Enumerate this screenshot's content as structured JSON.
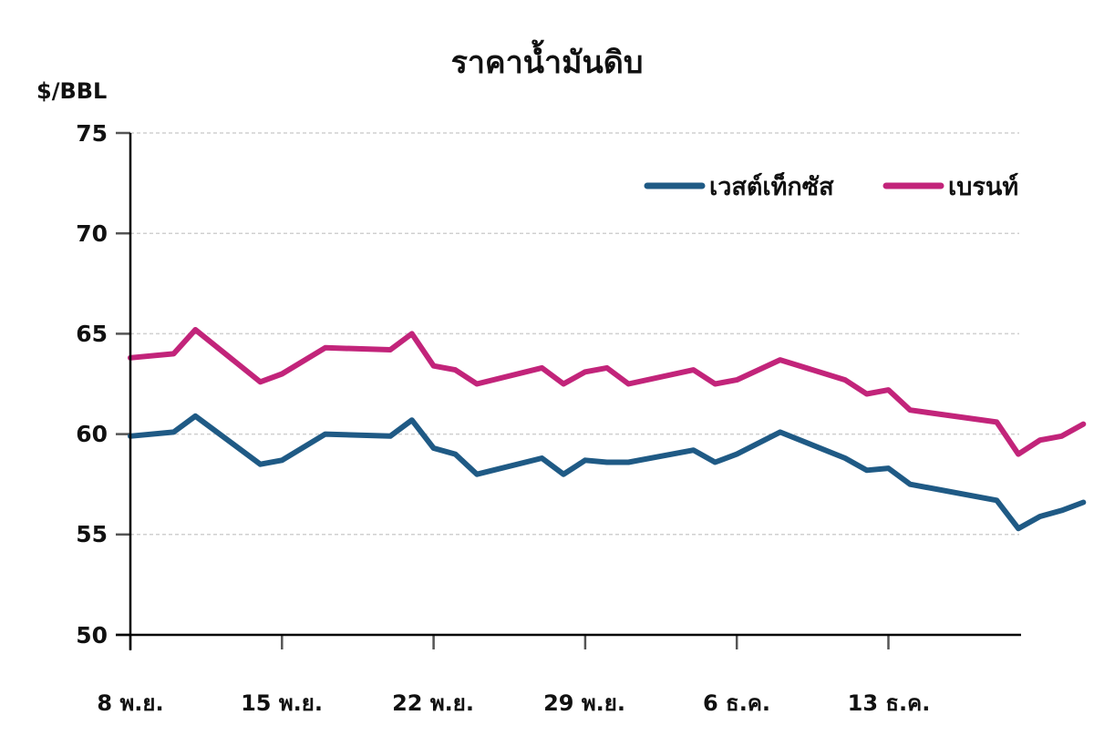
{
  "chart_data": {
    "type": "line",
    "title": "ราคาน้ำมันดิบ",
    "xlabel": "",
    "ylabel": "$/BBL",
    "ylim": [
      50,
      75
    ],
    "yticks": [
      50,
      55,
      60,
      65,
      70,
      75
    ],
    "grid": true,
    "legend_position": "top-right",
    "x_tick_labels": [
      "8 พ.ย.",
      "15 พ.ย.",
      "22 พ.ย.",
      "29 พ.ย.",
      "6 ธ.ค.",
      "13 ธ.ค."
    ],
    "x_day_offsets": [
      0,
      2,
      3,
      6,
      7,
      9,
      12,
      13,
      14,
      15,
      16,
      19,
      20,
      21,
      22,
      23,
      26,
      27,
      28,
      30,
      33,
      34,
      35,
      36,
      40,
      41,
      42,
      43,
      44
    ],
    "series": [
      {
        "name": "เวสต์เท็กซัส",
        "color": "#1F5A85",
        "values": [
          59.9,
          60.1,
          60.9,
          58.5,
          58.7,
          60.0,
          59.9,
          60.7,
          59.3,
          59.0,
          58.0,
          58.8,
          58.0,
          58.7,
          58.6,
          58.6,
          59.2,
          58.6,
          59.0,
          60.1,
          58.8,
          58.2,
          58.3,
          57.5,
          56.7,
          55.3,
          55.9,
          56.2,
          56.6
        ]
      },
      {
        "name": "เบรนท์",
        "color": "#C2247A",
        "values": [
          63.8,
          64.0,
          65.2,
          62.6,
          63.0,
          64.3,
          64.2,
          65.0,
          63.4,
          63.2,
          62.5,
          63.3,
          62.5,
          63.1,
          63.3,
          62.5,
          63.2,
          62.5,
          62.7,
          63.7,
          62.7,
          62.0,
          62.2,
          61.2,
          60.6,
          59.0,
          59.7,
          59.9,
          60.5
        ]
      }
    ]
  },
  "header": {
    "title": "ราคาน้ำมันดิบ",
    "unit_label": "$/BBL"
  },
  "legend": {
    "items": [
      {
        "label": "เวสต์เท็กซัส",
        "color": "#1F5A85"
      },
      {
        "label": "เบรนท์",
        "color": "#C2247A"
      }
    ]
  },
  "axis": {
    "y_labels": [
      "75",
      "70",
      "65",
      "60",
      "55",
      "50"
    ],
    "x_labels": [
      "8 พ.ย.",
      "15 พ.ย.",
      "22 พ.ย.",
      "29 พ.ย.",
      "6 ธ.ค.",
      "13 ธ.ค."
    ]
  }
}
